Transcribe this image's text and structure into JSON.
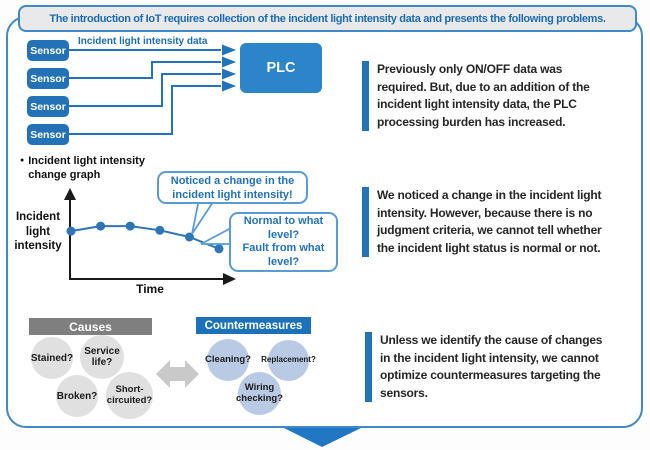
{
  "banner": {
    "text": "The introduction of IoT requires collection of the incident light intensity data and presents the following problems."
  },
  "sensor_diagram": {
    "sensor_label": "Sensor",
    "plc_label": "PLC",
    "arrow_label": "Incident light intensity data"
  },
  "graph": {
    "title_lines": [
      "Incident light intensity",
      "change graph"
    ],
    "y_axis_lines": [
      "Incident",
      "light",
      "intensity"
    ],
    "x_axis_label": "Time",
    "bubbles": [
      {
        "lines": [
          "Noticed a change in the",
          "incident light intensity!"
        ]
      },
      {
        "lines": [
          "Normal to what level?",
          "Fault from what level?"
        ]
      }
    ]
  },
  "chart_data": {
    "type": "line",
    "title": "Incident light intensity change graph",
    "xlabel": "Time",
    "ylabel": "Incident light intensity",
    "x": [
      0,
      1,
      2,
      3,
      4,
      5
    ],
    "values": [
      0.57,
      0.63,
      0.63,
      0.58,
      0.5,
      0.36
    ],
    "ylim": [
      0,
      1
    ],
    "grid": "off",
    "axis_ticks": "none",
    "annotation": "intensity slowly declines over time, dropping faster at the end"
  },
  "causes": {
    "header": "Causes",
    "items": [
      {
        "lines": [
          "Stained?"
        ]
      },
      {
        "lines": [
          "Service",
          "life?"
        ]
      },
      {
        "lines": [
          "Broken?"
        ]
      },
      {
        "lines": [
          "Short-",
          "circuited?"
        ]
      }
    ]
  },
  "countermeasures": {
    "header": "Countermeasures",
    "items": [
      {
        "lines": [
          "Cleaning?"
        ]
      },
      {
        "lines": [
          "Replacement?"
        ]
      },
      {
        "lines": [
          "Wiring",
          "checking?"
        ]
      }
    ]
  },
  "problems": [
    {
      "lines": [
        "Previously only ON/OFF data was",
        "required. But, due to an addition of the",
        "incident light intensity data, the PLC",
        "processing burden has increased."
      ]
    },
    {
      "lines": [
        "We noticed a change in the incident light",
        "intensity. However, because there is no",
        "judgment criteria, we cannot tell whether",
        "the incident light status is normal or not."
      ]
    },
    {
      "lines": [
        "Unless we identify the cause of changes",
        "in the incident light intensity, we cannot",
        "optimize countermeasures targeting the",
        "sensors."
      ]
    }
  ],
  "colors": {
    "frame_border": "#3f89c6",
    "banner_text": "#1b6cb3",
    "sensor_blue": "#2372b8",
    "plc_blue": "#2b85c8",
    "connector_blue": "#2173ba",
    "chart_blue": "#2e75b6",
    "bubble_border": "#5b9bd5",
    "bubble_text": "#2272b9",
    "causes_gray": "#7f7f7f",
    "circle_gray": "#e0e0e0",
    "circle_blue": "#b9cbe4",
    "double_arrow_gray": "#c9c9c9",
    "paragraph_bar_blue": "#2273b8",
    "bottom_arrow_blue": "#2277c2"
  }
}
